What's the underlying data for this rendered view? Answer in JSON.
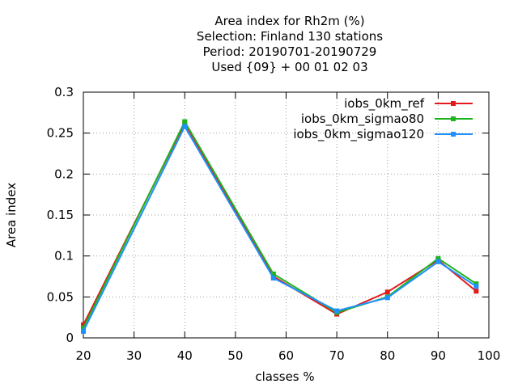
{
  "chart_data": {
    "type": "line",
    "title_lines": [
      "Area index  for Rh2m (%)",
      "Selection: Finland    130 stations",
      "Period: 20190701-20190729",
      "Used {09} + 00 01 02 03"
    ],
    "xlabel": "classes %",
    "ylabel": "Area index",
    "xlim": [
      20,
      100
    ],
    "ylim": [
      0,
      0.3
    ],
    "xticks": [
      20,
      30,
      40,
      50,
      60,
      70,
      80,
      90,
      100
    ],
    "yticks": [
      0,
      0.05,
      0.1,
      0.15,
      0.2,
      0.25,
      0.3
    ],
    "ytick_labels": [
      "0",
      "0.05",
      "0.1",
      "0.15",
      "0.2",
      "0.25",
      "0.3"
    ],
    "grid": true,
    "legend_position": "top-right",
    "series": [
      {
        "name": "iobs_0km_ref",
        "color": "#e41a1c",
        "x": [
          20,
          40,
          57.5,
          70,
          80,
          90,
          97.5
        ],
        "y": [
          0.016,
          0.262,
          0.075,
          0.029,
          0.056,
          0.095,
          0.057
        ]
      },
      {
        "name": "iobs_0km_sigmao80",
        "color": "#1fb41f",
        "x": [
          20,
          40,
          57.5,
          70,
          80,
          90,
          97.5
        ],
        "y": [
          0.012,
          0.264,
          0.078,
          0.031,
          0.05,
          0.097,
          0.066
        ]
      },
      {
        "name": "iobs_0km_sigmao120",
        "color": "#1e90ff",
        "x": [
          20,
          40,
          57.5,
          70,
          80,
          90,
          97.5
        ],
        "y": [
          0.008,
          0.258,
          0.073,
          0.033,
          0.049,
          0.093,
          0.063
        ]
      }
    ]
  }
}
